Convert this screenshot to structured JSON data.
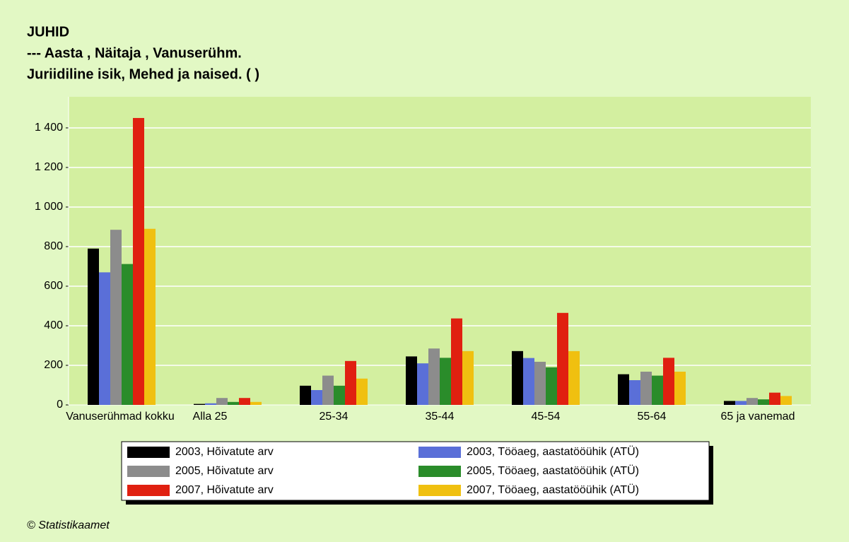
{
  "chart_data": {
    "type": "bar",
    "title": "JUHID",
    "subtitle": [
      "--- Aasta , Näitaja , Vanuserühm.",
      "Juriidiline isik, Mehed ja naised. ( )"
    ],
    "footer": "© Statistikaamet",
    "categories": [
      "Vanuserühmad kokku",
      "Alla 25",
      "25-34",
      "35-44",
      "45-54",
      "55-64",
      "65 ja vanemad"
    ],
    "series": [
      {
        "name": "2003, Hõivatute arv",
        "color": "#000000",
        "values": [
          790,
          5,
          97,
          245,
          272,
          155,
          20
        ]
      },
      {
        "name": "2003, Tööaeg, aastatööühik (ATÜ)",
        "color": "#5a6fd8",
        "values": [
          670,
          8,
          75,
          210,
          237,
          125,
          20
        ]
      },
      {
        "name": "2005, Hõivatute arv",
        "color": "#8c8c8c",
        "values": [
          885,
          35,
          148,
          285,
          218,
          168,
          35
        ]
      },
      {
        "name": "2005, Tööaeg, aastatööühik (ATÜ)",
        "color": "#2a8c2a",
        "values": [
          712,
          15,
          97,
          238,
          190,
          148,
          28
        ]
      },
      {
        "name": "2007, Hõivatute arv",
        "color": "#e02010",
        "values": [
          1450,
          35,
          222,
          437,
          465,
          238,
          62
        ]
      },
      {
        "name": "2007, Tööaeg, aastatööühik (ATÜ)",
        "color": "#f0c010",
        "values": [
          890,
          15,
          133,
          272,
          272,
          168,
          45
        ]
      }
    ],
    "ylim": [
      0,
      1557
    ],
    "yticks": [
      0,
      200,
      400,
      600,
      800,
      {
        "value": 1000,
        "label": "1 000"
      },
      {
        "value": 1200,
        "label": "1 200"
      },
      {
        "value": 1400,
        "label": "1 400"
      }
    ],
    "grid": true
  }
}
